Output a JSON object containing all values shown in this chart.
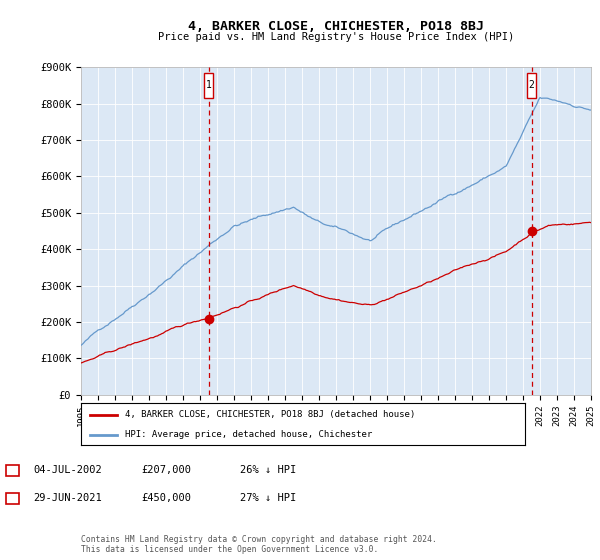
{
  "title": "4, BARKER CLOSE, CHICHESTER, PO18 8BJ",
  "subtitle": "Price paid vs. HM Land Registry's House Price Index (HPI)",
  "bg_color": "#dce8f5",
  "x_start_year": 1995,
  "x_end_year": 2025,
  "y_ticks": [
    0,
    100000,
    200000,
    300000,
    400000,
    500000,
    600000,
    700000,
    800000,
    900000
  ],
  "y_tick_labels": [
    "£0",
    "£100K",
    "£200K",
    "£300K",
    "£400K",
    "£500K",
    "£600K",
    "£700K",
    "£800K",
    "£900K"
  ],
  "sale1_year": 2002.5,
  "sale1_price": 207000,
  "sale1_label": "1",
  "sale1_date_str": "04-JUL-2002",
  "sale1_pct": "26% ↓ HPI",
  "sale2_year": 2021.5,
  "sale2_price": 450000,
  "sale2_label": "2",
  "sale2_date_str": "29-JUN-2021",
  "sale2_pct": "27% ↓ HPI",
  "line_color_property": "#cc0000",
  "line_color_hpi": "#6699cc",
  "legend_label_property": "4, BARKER CLOSE, CHICHESTER, PO18 8BJ (detached house)",
  "legend_label_hpi": "HPI: Average price, detached house, Chichester",
  "footer": "Contains HM Land Registry data © Crown copyright and database right 2024.\nThis data is licensed under the Open Government Licence v3.0.",
  "sale1_price_str": "£207,000",
  "sale2_price_str": "£450,000"
}
